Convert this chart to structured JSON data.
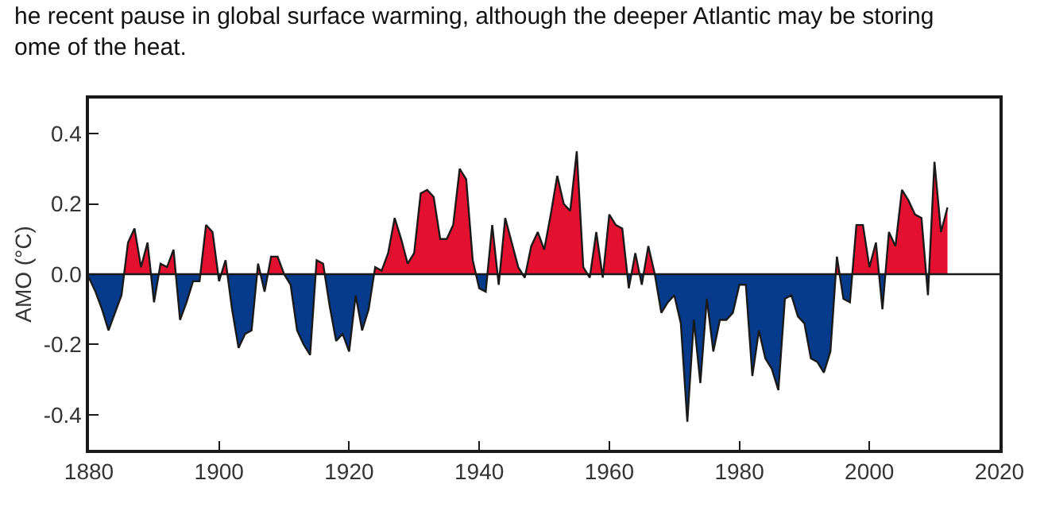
{
  "chart_data": {
    "type": "area",
    "annotations": [
      "he recent pause in global surface warming, although the deeper Atlantic may be storing\nome of the heat."
    ],
    "ylabel": "AMO (°C)",
    "x": [
      1880,
      1881,
      1882,
      1883,
      1884,
      1885,
      1886,
      1887,
      1888,
      1889,
      1890,
      1891,
      1892,
      1893,
      1894,
      1895,
      1896,
      1897,
      1898,
      1899,
      1900,
      1901,
      1902,
      1903,
      1904,
      1905,
      1906,
      1907,
      1908,
      1909,
      1910,
      1911,
      1912,
      1913,
      1914,
      1915,
      1916,
      1917,
      1918,
      1919,
      1920,
      1921,
      1922,
      1923,
      1924,
      1925,
      1926,
      1927,
      1928,
      1929,
      1930,
      1931,
      1932,
      1933,
      1934,
      1935,
      1936,
      1937,
      1938,
      1939,
      1940,
      1941,
      1942,
      1943,
      1944,
      1945,
      1946,
      1947,
      1948,
      1949,
      1950,
      1951,
      1952,
      1953,
      1954,
      1955,
      1956,
      1957,
      1958,
      1959,
      1960,
      1961,
      1962,
      1963,
      1964,
      1965,
      1966,
      1967,
      1968,
      1969,
      1970,
      1971,
      1972,
      1973,
      1974,
      1975,
      1976,
      1977,
      1978,
      1979,
      1980,
      1981,
      1982,
      1983,
      1984,
      1985,
      1986,
      1987,
      1988,
      1989,
      1990,
      1991,
      1992,
      1993,
      1994,
      1995,
      1996,
      1997,
      1998,
      1999,
      2000,
      2001,
      2002,
      2003,
      2004,
      2005,
      2006,
      2007,
      2008,
      2009,
      2010,
      2011,
      2012
    ],
    "series": [
      {
        "color": "#1a1a1a",
        "values": [
          -0.01,
          -0.05,
          -0.1,
          -0.16,
          -0.11,
          -0.06,
          0.09,
          0.13,
          0.02,
          0.09,
          -0.08,
          0.03,
          0.02,
          0.07,
          -0.13,
          -0.08,
          -0.02,
          -0.02,
          0.14,
          0.12,
          -0.02,
          0.04,
          -0.1,
          -0.21,
          -0.17,
          -0.16,
          0.03,
          -0.05,
          0.05,
          0.05,
          0.0,
          -0.03,
          -0.16,
          -0.2,
          -0.23,
          0.04,
          0.03,
          -0.09,
          -0.19,
          -0.17,
          -0.22,
          -0.06,
          -0.16,
          -0.1,
          0.02,
          0.01,
          0.06,
          0.16,
          0.1,
          0.03,
          0.06,
          0.23,
          0.24,
          0.22,
          0.1,
          0.1,
          0.14,
          0.3,
          0.27,
          0.04,
          -0.04,
          -0.05,
          0.14,
          -0.03,
          0.16,
          0.09,
          0.02,
          -0.01,
          0.08,
          0.12,
          0.07,
          0.17,
          0.28,
          0.2,
          0.18,
          0.35,
          0.02,
          -0.01,
          0.12,
          -0.01,
          0.17,
          0.14,
          0.13,
          -0.04,
          0.06,
          -0.03,
          0.08,
          0.0,
          -0.11,
          -0.08,
          -0.06,
          -0.14,
          -0.42,
          -0.13,
          -0.31,
          -0.07,
          -0.22,
          -0.13,
          -0.13,
          -0.11,
          -0.03,
          -0.03,
          -0.29,
          -0.16,
          -0.24,
          -0.27,
          -0.33,
          -0.07,
          -0.06,
          -0.12,
          -0.14,
          -0.24,
          -0.25,
          -0.28,
          -0.22,
          0.05,
          -0.07,
          -0.08,
          0.14,
          0.14,
          0.02,
          0.09,
          -0.1,
          0.12,
          0.08,
          0.24,
          0.21,
          0.17,
          0.16,
          -0.06,
          0.32,
          0.12,
          0.19
        ],
        "colors": [
          "#063b8c",
          "#063b8c",
          "#063b8c",
          "#063b8c",
          "#063b8c",
          "#063b8c",
          "#e3102f",
          "#e3102f",
          "#e3102f",
          "#e3102f",
          "#063b8c",
          "#e3102f",
          "#e3102f",
          "#e3102f",
          "#063b8c",
          "#063b8c",
          "#063b8c",
          "#063b8c",
          "#e3102f",
          "#e3102f",
          "#063b8c",
          "#e3102f",
          "#063b8c",
          "#063b8c",
          "#063b8c",
          "#063b8c",
          "#e3102f",
          "#063b8c",
          "#e3102f",
          "#e3102f",
          "#063b8c",
          "#063b8c",
          "#063b8c",
          "#063b8c",
          "#063b8c",
          "#e3102f",
          "#e3102f",
          "#063b8c",
          "#063b8c",
          "#063b8c",
          "#063b8c",
          "#063b8c",
          "#063b8c",
          "#063b8c",
          "#e3102f",
          "#e3102f",
          "#e3102f",
          "#e3102f",
          "#e3102f",
          "#e3102f",
          "#e3102f",
          "#e3102f",
          "#e3102f",
          "#e3102f",
          "#e3102f",
          "#e3102f",
          "#e3102f",
          "#e3102f",
          "#e3102f",
          "#e3102f",
          "#063b8c",
          "#063b8c",
          "#e3102f",
          "#063b8c",
          "#e3102f",
          "#e3102f",
          "#e3102f",
          "#063b8c",
          "#e3102f",
          "#e3102f",
          "#e3102f",
          "#e3102f",
          "#e3102f",
          "#e3102f",
          "#e3102f",
          "#e3102f",
          "#e3102f",
          "#063b8c",
          "#e3102f",
          "#063b8c",
          "#e3102f",
          "#e3102f",
          "#e3102f",
          "#063b8c",
          "#e3102f",
          "#063b8c",
          "#e3102f",
          "#e3102f",
          "#063b8c",
          "#063b8c",
          "#063b8c",
          "#063b8c",
          "#063b8c",
          "#063b8c",
          "#063b8c",
          "#063b8c",
          "#063b8c",
          "#063b8c",
          "#063b8c",
          "#063b8c",
          "#063b8c",
          "#063b8c",
          "#063b8c",
          "#063b8c",
          "#063b8c",
          "#063b8c",
          "#063b8c",
          "#063b8c",
          "#063b8c",
          "#063b8c",
          "#063b8c",
          "#063b8c",
          "#063b8c",
          "#063b8c",
          "#063b8c",
          "#e3102f",
          "#063b8c",
          "#063b8c",
          "#e3102f",
          "#e3102f",
          "#e3102f",
          "#e3102f",
          "#063b8c",
          "#e3102f",
          "#e3102f",
          "#e3102f",
          "#e3102f",
          "#e3102f",
          "#e3102f",
          "#063b8c",
          "#e3102f",
          "#e3102f",
          "#e3102f"
        ]
      }
    ],
    "xlim": [
      1880,
      2020
    ],
    "xticks": [
      1880,
      1900,
      1920,
      1940,
      1960,
      1980,
      2000,
      2020
    ],
    "ylim": [
      -0.5,
      0.5
    ],
    "yticks": [
      -0.4,
      -0.2,
      {
        "value": 0,
        "label": "0.0"
      },
      0.2,
      0.4
    ],
    "ref_lines": [
      {
        "axis": "y",
        "value": 0,
        "color": "#1a1a1a"
      }
    ]
  }
}
